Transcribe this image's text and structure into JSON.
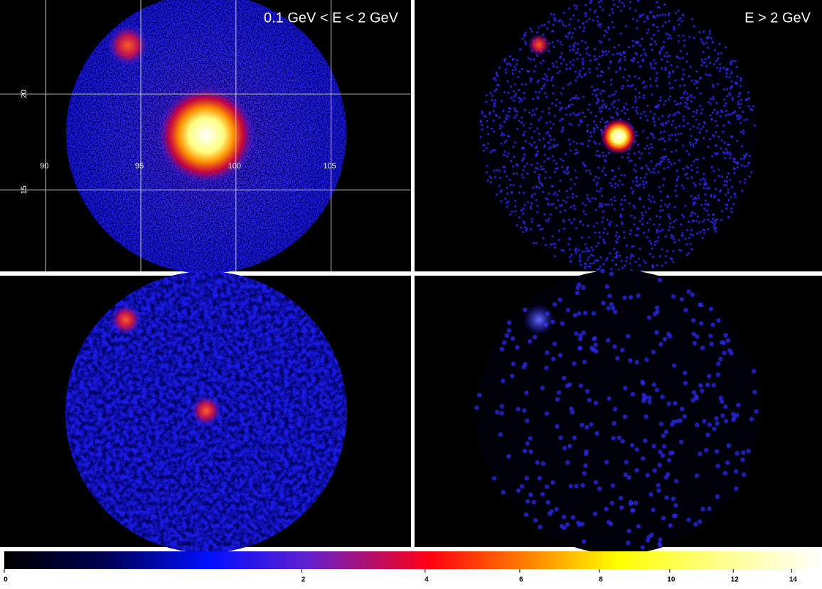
{
  "panels": [
    {
      "label": "0.1 GeV < E < 2 GeV"
    },
    {
      "label": "E > 2 GeV"
    }
  ],
  "coordinate_grid": {
    "xlim": [
      87.6,
      109.2
    ],
    "ylim": [
      10.75,
      24.9
    ],
    "xticks": [
      90,
      95,
      100,
      105
    ],
    "yticks": [
      20,
      15
    ]
  },
  "colorbar": {
    "scale": "sqrt",
    "lim": [
      0,
      15.1
    ],
    "ticks": [
      0,
      2,
      4,
      6,
      8,
      10,
      12,
      14
    ]
  }
}
